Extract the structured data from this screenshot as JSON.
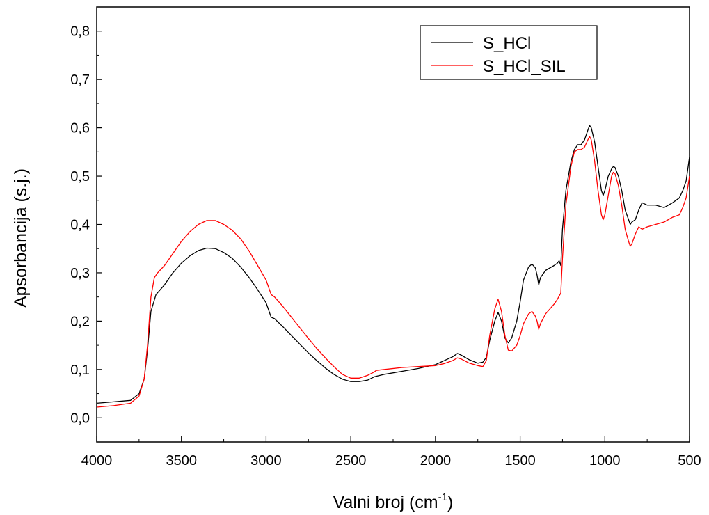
{
  "chart_data": {
    "type": "line",
    "xlabel_main": "Valni broj (cm",
    "xlabel_sup": "-1",
    "xlabel_end": ")",
    "ylabel": "Apsorbancija (s.j.)",
    "xlim": [
      4000,
      500
    ],
    "x_reversed": true,
    "ylim": [
      -0.05,
      0.85
    ],
    "x_ticks": [
      4000,
      3500,
      3000,
      2500,
      2000,
      1500,
      1000,
      500
    ],
    "y_ticks": [
      0.0,
      0.1,
      0.2,
      0.3,
      0.4,
      0.5,
      0.6,
      0.7,
      0.8
    ],
    "x_tick_labels": [
      "4000",
      "3500",
      "3000",
      "2500",
      "2000",
      "1500",
      "1000",
      "500"
    ],
    "y_tick_labels": [
      "0,0",
      "0,1",
      "0,2",
      "0,3",
      "0,4",
      "0,5",
      "0,6",
      "0,7",
      "0,8"
    ],
    "grid": false,
    "legend_position": "top-right",
    "series": [
      {
        "name": "S_HCl",
        "color": "#000000",
        "points": [
          [
            4000,
            0.03
          ],
          [
            3900,
            0.033
          ],
          [
            3800,
            0.036
          ],
          [
            3750,
            0.05
          ],
          [
            3720,
            0.08
          ],
          [
            3700,
            0.14
          ],
          [
            3680,
            0.22
          ],
          [
            3650,
            0.255
          ],
          [
            3600,
            0.275
          ],
          [
            3550,
            0.3
          ],
          [
            3500,
            0.32
          ],
          [
            3450,
            0.335
          ],
          [
            3400,
            0.346
          ],
          [
            3350,
            0.351
          ],
          [
            3300,
            0.35
          ],
          [
            3250,
            0.342
          ],
          [
            3200,
            0.33
          ],
          [
            3150,
            0.312
          ],
          [
            3100,
            0.29
          ],
          [
            3050,
            0.265
          ],
          [
            3000,
            0.238
          ],
          [
            2970,
            0.208
          ],
          [
            2950,
            0.205
          ],
          [
            2900,
            0.188
          ],
          [
            2850,
            0.17
          ],
          [
            2800,
            0.152
          ],
          [
            2750,
            0.134
          ],
          [
            2700,
            0.118
          ],
          [
            2650,
            0.103
          ],
          [
            2600,
            0.09
          ],
          [
            2550,
            0.08
          ],
          [
            2500,
            0.075
          ],
          [
            2450,
            0.075
          ],
          [
            2400,
            0.078
          ],
          [
            2360,
            0.085
          ],
          [
            2300,
            0.09
          ],
          [
            2200,
            0.096
          ],
          [
            2100,
            0.102
          ],
          [
            2000,
            0.11
          ],
          [
            1950,
            0.118
          ],
          [
            1900,
            0.126
          ],
          [
            1870,
            0.133
          ],
          [
            1850,
            0.13
          ],
          [
            1800,
            0.12
          ],
          [
            1750,
            0.113
          ],
          [
            1720,
            0.115
          ],
          [
            1700,
            0.125
          ],
          [
            1680,
            0.16
          ],
          [
            1650,
            0.2
          ],
          [
            1630,
            0.218
          ],
          [
            1610,
            0.2
          ],
          [
            1590,
            0.165
          ],
          [
            1570,
            0.155
          ],
          [
            1550,
            0.165
          ],
          [
            1520,
            0.2
          ],
          [
            1500,
            0.24
          ],
          [
            1480,
            0.285
          ],
          [
            1450,
            0.312
          ],
          [
            1430,
            0.318
          ],
          [
            1410,
            0.31
          ],
          [
            1400,
            0.295
          ],
          [
            1390,
            0.275
          ],
          [
            1380,
            0.29
          ],
          [
            1350,
            0.305
          ],
          [
            1300,
            0.315
          ],
          [
            1280,
            0.32
          ],
          [
            1270,
            0.325
          ],
          [
            1260,
            0.315
          ],
          [
            1250,
            0.39
          ],
          [
            1230,
            0.47
          ],
          [
            1200,
            0.53
          ],
          [
            1180,
            0.555
          ],
          [
            1160,
            0.565
          ],
          [
            1140,
            0.565
          ],
          [
            1120,
            0.575
          ],
          [
            1100,
            0.595
          ],
          [
            1090,
            0.605
          ],
          [
            1080,
            0.6
          ],
          [
            1060,
            0.57
          ],
          [
            1040,
            0.52
          ],
          [
            1020,
            0.47
          ],
          [
            1010,
            0.46
          ],
          [
            1000,
            0.47
          ],
          [
            980,
            0.5
          ],
          [
            960,
            0.515
          ],
          [
            950,
            0.52
          ],
          [
            940,
            0.518
          ],
          [
            920,
            0.5
          ],
          [
            900,
            0.47
          ],
          [
            880,
            0.43
          ],
          [
            860,
            0.41
          ],
          [
            850,
            0.4
          ],
          [
            840,
            0.405
          ],
          [
            820,
            0.41
          ],
          [
            800,
            0.43
          ],
          [
            780,
            0.445
          ],
          [
            750,
            0.44
          ],
          [
            700,
            0.44
          ],
          [
            650,
            0.435
          ],
          [
            600,
            0.445
          ],
          [
            560,
            0.455
          ],
          [
            540,
            0.47
          ],
          [
            520,
            0.49
          ],
          [
            500,
            0.54
          ]
        ]
      },
      {
        "name": "S_HCl_SIL",
        "color": "#ff0000",
        "points": [
          [
            4000,
            0.022
          ],
          [
            3900,
            0.025
          ],
          [
            3800,
            0.03
          ],
          [
            3750,
            0.045
          ],
          [
            3720,
            0.08
          ],
          [
            3700,
            0.15
          ],
          [
            3680,
            0.25
          ],
          [
            3660,
            0.29
          ],
          [
            3640,
            0.3
          ],
          [
            3600,
            0.315
          ],
          [
            3550,
            0.34
          ],
          [
            3500,
            0.365
          ],
          [
            3450,
            0.385
          ],
          [
            3400,
            0.4
          ],
          [
            3350,
            0.408
          ],
          [
            3300,
            0.408
          ],
          [
            3250,
            0.4
          ],
          [
            3200,
            0.388
          ],
          [
            3150,
            0.37
          ],
          [
            3100,
            0.345
          ],
          [
            3050,
            0.315
          ],
          [
            3000,
            0.285
          ],
          [
            2970,
            0.255
          ],
          [
            2950,
            0.25
          ],
          [
            2900,
            0.23
          ],
          [
            2850,
            0.208
          ],
          [
            2800,
            0.186
          ],
          [
            2750,
            0.164
          ],
          [
            2700,
            0.143
          ],
          [
            2650,
            0.124
          ],
          [
            2600,
            0.106
          ],
          [
            2550,
            0.09
          ],
          [
            2500,
            0.082
          ],
          [
            2450,
            0.082
          ],
          [
            2400,
            0.088
          ],
          [
            2360,
            0.095
          ],
          [
            2350,
            0.098
          ],
          [
            2300,
            0.1
          ],
          [
            2200,
            0.104
          ],
          [
            2100,
            0.106
          ],
          [
            2000,
            0.108
          ],
          [
            1950,
            0.112
          ],
          [
            1900,
            0.118
          ],
          [
            1870,
            0.124
          ],
          [
            1850,
            0.122
          ],
          [
            1800,
            0.113
          ],
          [
            1750,
            0.108
          ],
          [
            1720,
            0.106
          ],
          [
            1700,
            0.118
          ],
          [
            1680,
            0.17
          ],
          [
            1650,
            0.225
          ],
          [
            1630,
            0.245
          ],
          [
            1610,
            0.22
          ],
          [
            1590,
            0.17
          ],
          [
            1570,
            0.14
          ],
          [
            1550,
            0.138
          ],
          [
            1520,
            0.15
          ],
          [
            1500,
            0.17
          ],
          [
            1480,
            0.195
          ],
          [
            1450,
            0.215
          ],
          [
            1430,
            0.22
          ],
          [
            1410,
            0.21
          ],
          [
            1400,
            0.2
          ],
          [
            1390,
            0.183
          ],
          [
            1380,
            0.195
          ],
          [
            1350,
            0.215
          ],
          [
            1300,
            0.235
          ],
          [
            1280,
            0.245
          ],
          [
            1260,
            0.258
          ],
          [
            1250,
            0.33
          ],
          [
            1230,
            0.44
          ],
          [
            1200,
            0.52
          ],
          [
            1180,
            0.55
          ],
          [
            1160,
            0.555
          ],
          [
            1140,
            0.555
          ],
          [
            1120,
            0.56
          ],
          [
            1100,
            0.575
          ],
          [
            1090,
            0.582
          ],
          [
            1080,
            0.575
          ],
          [
            1060,
            0.53
          ],
          [
            1040,
            0.47
          ],
          [
            1020,
            0.42
          ],
          [
            1010,
            0.41
          ],
          [
            1000,
            0.42
          ],
          [
            980,
            0.46
          ],
          [
            960,
            0.5
          ],
          [
            950,
            0.508
          ],
          [
            940,
            0.505
          ],
          [
            920,
            0.48
          ],
          [
            900,
            0.44
          ],
          [
            880,
            0.39
          ],
          [
            860,
            0.365
          ],
          [
            850,
            0.355
          ],
          [
            840,
            0.36
          ],
          [
            820,
            0.38
          ],
          [
            800,
            0.395
          ],
          [
            780,
            0.39
          ],
          [
            750,
            0.395
          ],
          [
            700,
            0.4
          ],
          [
            650,
            0.405
          ],
          [
            600,
            0.415
          ],
          [
            560,
            0.42
          ],
          [
            540,
            0.435
          ],
          [
            520,
            0.455
          ],
          [
            500,
            0.5
          ]
        ]
      }
    ]
  }
}
